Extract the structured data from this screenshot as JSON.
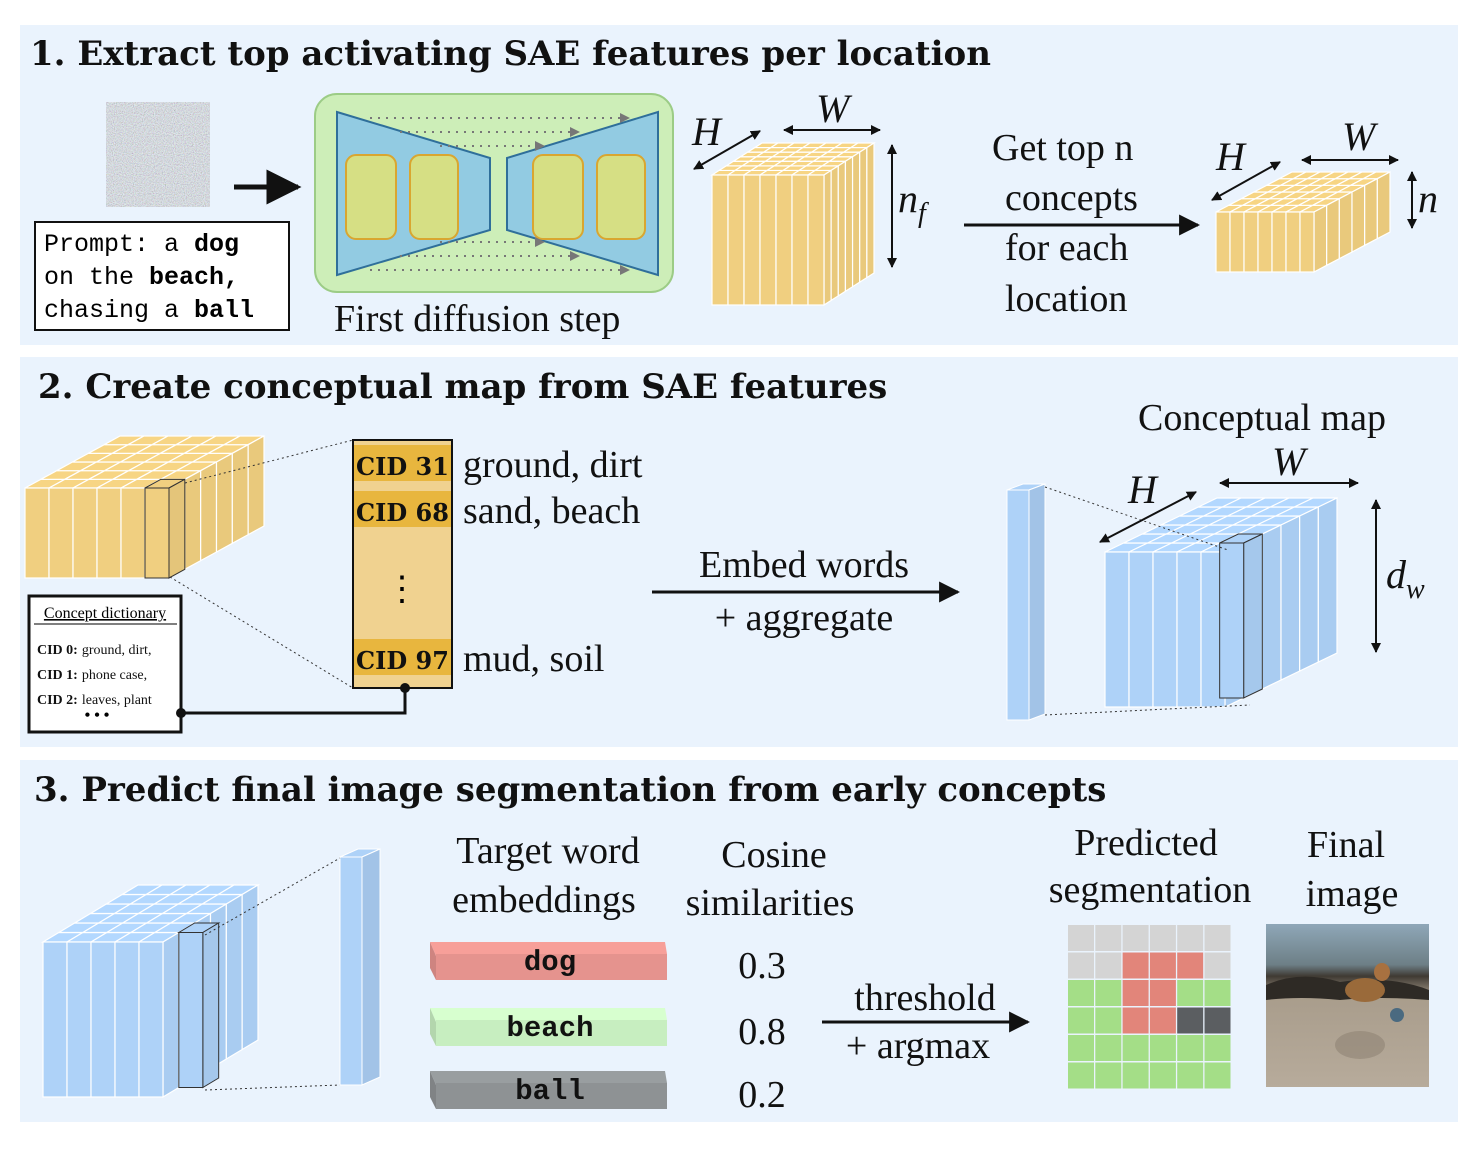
{
  "colors": {
    "panel_bg": "#eaf3fd",
    "yellow": "#f0cf80",
    "yellow_dark": "#e8b63e",
    "blue": "#aed2f8",
    "unet_green": "#cdeeb8",
    "unet_blue": "#92cbe2",
    "unet_block": "#d6df84",
    "dog": "#e5938e",
    "beach": "#c7eec0",
    "ball": "#8e9294",
    "seg_gray": "#d4d4d4",
    "seg_red": "#e2857a",
    "seg_green": "#a4de87",
    "seg_dark": "#5b5e61"
  },
  "panel1": {
    "title": "1.  Extract top activating SAE features per location",
    "prompt": {
      "line1_pre": "Prompt: a ",
      "line1_bold": "dog",
      "line2_pre": "on the ",
      "line2_bold": "beach,",
      "line3_pre": "chasing a ",
      "line3_bold": "ball"
    },
    "diffusion_label": "First diffusion step",
    "cube1": {
      "h": "H",
      "w": "W",
      "depth": "n",
      "depth_sub": "f"
    },
    "step_text": [
      "Get top n",
      "concepts",
      "for each",
      "location"
    ],
    "cube2": {
      "h": "H",
      "w": "W",
      "depth": "n"
    }
  },
  "panel2": {
    "title": "2.  Create conceptual map from SAE features",
    "cid_rows": [
      {
        "cid": "CID 31",
        "words": "ground, dirt"
      },
      {
        "cid": "CID 68",
        "words": "sand, beach"
      },
      {
        "cid": "CID 97",
        "words": "mud, soil"
      }
    ],
    "ellipsis": "⋮",
    "dictionary": {
      "title": "Concept dictionary",
      "entries": [
        {
          "cid": "CID 0:",
          "words": "ground, dirt,"
        },
        {
          "cid": "CID 1:",
          "words": "phone case,"
        },
        {
          "cid": "CID 2:",
          "words": "leaves, plant"
        }
      ],
      "more": "• • •"
    },
    "arrow_top": "Embed words",
    "arrow_bottom": "+ aggregate",
    "map_title": "Conceptual map",
    "h": "H",
    "w": "W",
    "depth": "d",
    "depth_sub": "w"
  },
  "panel3": {
    "title": "3.  Predict final image segmentation from early concepts",
    "target_header": [
      "Target word",
      "embeddings"
    ],
    "cosine_header": [
      "Cosine",
      "similarities"
    ],
    "words": [
      {
        "word": "dog",
        "similarity": "0.3"
      },
      {
        "word": "beach",
        "similarity": "0.8"
      },
      {
        "word": "ball",
        "similarity": "0.2"
      }
    ],
    "arrow_top": "threshold",
    "arrow_bottom": "+ argmax",
    "pred_header": [
      "Predicted",
      "segmentation"
    ],
    "final_header": [
      "Final",
      "image"
    ],
    "segmentation_grid": [
      [
        "none",
        "none",
        "none",
        "none",
        "none",
        "none"
      ],
      [
        "none",
        "none",
        "dog",
        "dog",
        "dog",
        "none"
      ],
      [
        "beach",
        "beach",
        "dog",
        "dog",
        "beach",
        "beach"
      ],
      [
        "beach",
        "beach",
        "dog",
        "dog",
        "ball",
        "ball"
      ],
      [
        "beach",
        "beach",
        "beach",
        "beach",
        "beach",
        "beach"
      ],
      [
        "beach",
        "beach",
        "beach",
        "beach",
        "beach",
        "beach"
      ]
    ]
  }
}
